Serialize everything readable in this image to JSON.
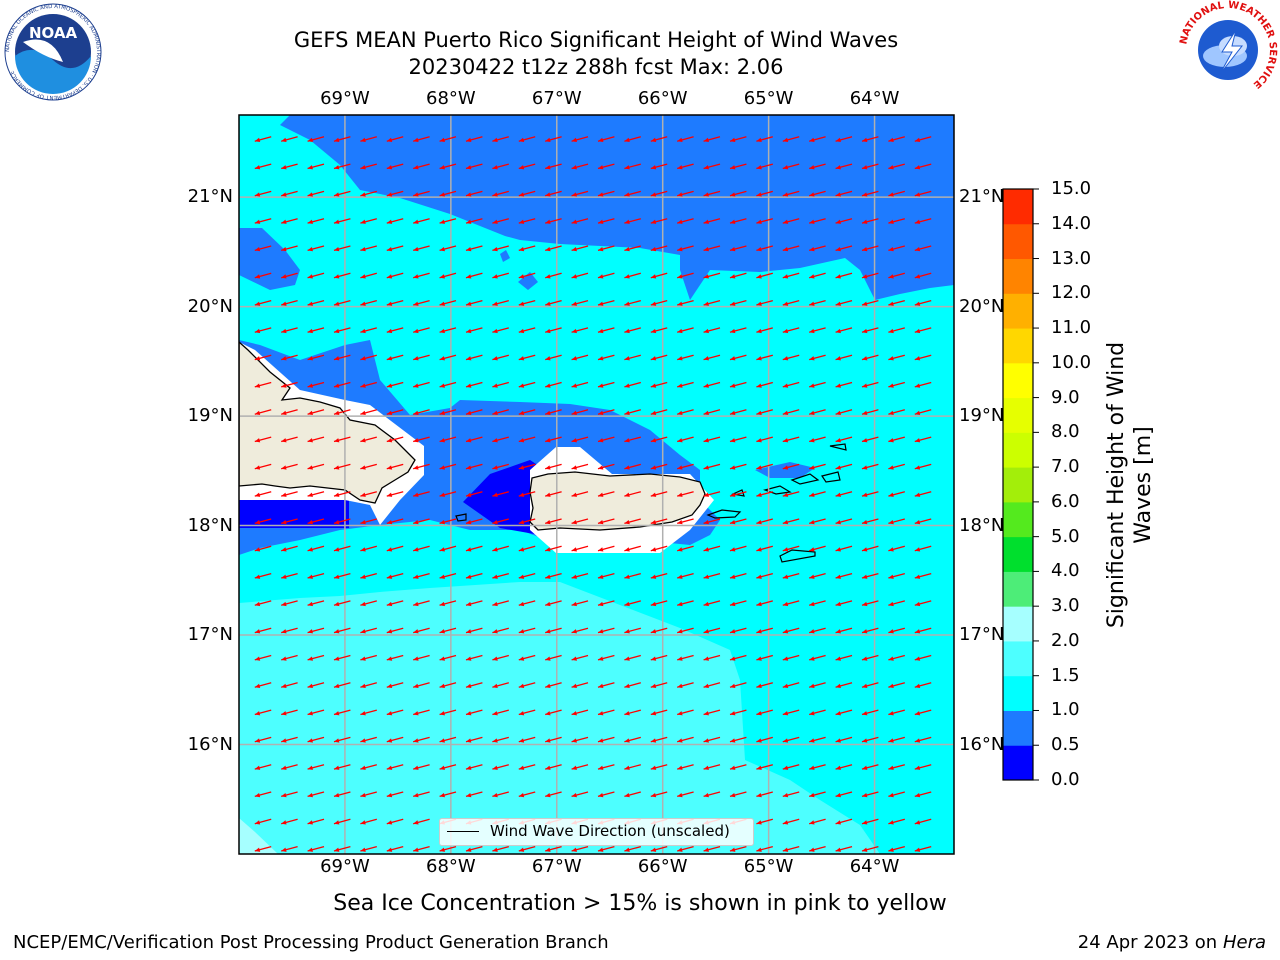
{
  "title": {
    "line1": "GEFS MEAN Puerto Rico Significant Height of Wind Waves",
    "line2": "20230422 t12z 288h fcst   Max: 2.06"
  },
  "map": {
    "extent": {
      "lon_min": -70.0,
      "lon_max": -63.25,
      "lat_min": 15.0,
      "lat_max": 21.75
    },
    "lon_ticks": [
      {
        "value": -69,
        "label": "69°W"
      },
      {
        "value": -68,
        "label": "68°W"
      },
      {
        "value": -67,
        "label": "67°W"
      },
      {
        "value": -66,
        "label": "66°W"
      },
      {
        "value": -65,
        "label": "65°W"
      },
      {
        "value": -64,
        "label": "64°W"
      }
    ],
    "lat_ticks": [
      {
        "value": 21,
        "label": "21°N"
      },
      {
        "value": 20,
        "label": "20°N"
      },
      {
        "value": 19,
        "label": "19°N"
      },
      {
        "value": 18,
        "label": "18°N"
      },
      {
        "value": 17,
        "label": "17°N"
      },
      {
        "value": 16,
        "label": "16°N"
      }
    ],
    "land_color": "#efecdc",
    "grid_color": "#b0b0b0",
    "arrow_color": "#ff0000",
    "wave_direction_deg_from_east": 195
  },
  "colorbar": {
    "label": "Significant Height of Wind Waves [m]",
    "min": 0.0,
    "max": 15.0,
    "ticks": [
      "0.0",
      "0.5",
      "1.0",
      "1.5",
      "2.0",
      "3.0",
      "4.0",
      "5.0",
      "6.0",
      "7.0",
      "8.0",
      "9.0",
      "10.0",
      "11.0",
      "12.0",
      "13.0",
      "14.0",
      "15.0"
    ],
    "colors": [
      "#0000ff",
      "#1e7bff",
      "#00ffff",
      "#4dffff",
      "#a6ffff",
      "#4ded78",
      "#00df2d",
      "#54ea1e",
      "#a3ee0a",
      "#ccff00",
      "#e6ff00",
      "#ffff00",
      "#ffd700",
      "#ffb000",
      "#ff8400",
      "#ff5800",
      "#ff2b00",
      "#ff0000"
    ]
  },
  "legend": {
    "label": "Wind Wave Direction (unscaled)"
  },
  "footer": {
    "note": "Sea Ice Concentration > 15% is shown in pink to yellow",
    "credit_left": "NCEP/EMC/Verification Post Processing Product Generation Branch",
    "credit_date": "24 Apr 2023 on ",
    "credit_machine": "Hera"
  },
  "logos": {
    "noaa_text": "NOAA",
    "noaa_ring": "NATIONAL OCEANIC AND ATMOSPHERIC ADMINISTRATION · U.S. DEPARTMENT OF COMMERCE",
    "nws_ring": "NATIONAL WEATHER SERVICE"
  }
}
